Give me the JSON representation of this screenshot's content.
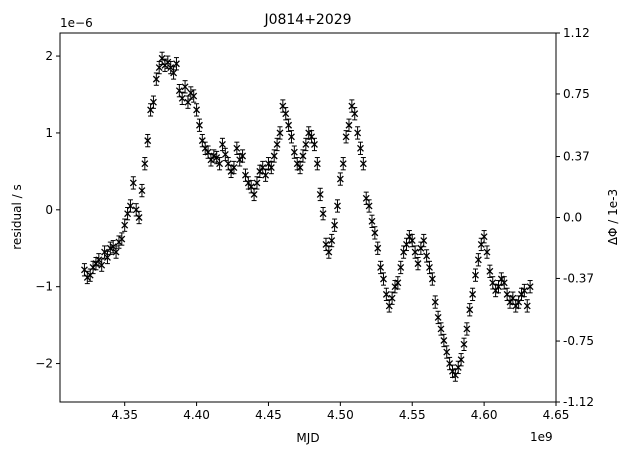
{
  "chart_data": {
    "type": "scatter",
    "title": "J0814+2029",
    "xlabel": "MJD",
    "ylabel": "residual / s",
    "y2label": "ΔΦ / 1e-3",
    "x_multiplier": "1e9",
    "y_multiplier": "1e−6",
    "xlim": [
      4.305,
      4.65
    ],
    "ylim": [
      -2.5,
      2.3
    ],
    "y2lim": [
      -1.12,
      1.12
    ],
    "x_ticks": [
      4.35,
      4.4,
      4.45,
      4.5,
      4.55,
      4.6,
      4.65
    ],
    "x_tick_labels": [
      "4.35",
      "4.40",
      "4.45",
      "4.50",
      "4.55",
      "4.60",
      "4.65"
    ],
    "y_ticks": [
      -2,
      -1,
      0,
      1,
      2
    ],
    "y_tick_labels": [
      "−2",
      "−1",
      "0",
      "1",
      "2"
    ],
    "y2_ticks": [
      -1.12,
      -0.75,
      -0.37,
      0.0,
      0.37,
      0.75,
      1.12
    ],
    "y2_tick_labels": [
      "-1.12",
      "-0.75",
      "-0.37",
      "0.0",
      "0.37",
      "0.75",
      "1.12"
    ],
    "grid": false,
    "marker": "x",
    "marker_color": "#000000",
    "error_bar": 0.08,
    "series": [
      {
        "points": [
          [
            4.322,
            -0.78
          ],
          [
            4.324,
            -0.88
          ],
          [
            4.326,
            -0.85
          ],
          [
            4.328,
            -0.75
          ],
          [
            4.33,
            -0.7
          ],
          [
            4.332,
            -0.65
          ],
          [
            4.334,
            -0.72
          ],
          [
            4.336,
            -0.55
          ],
          [
            4.338,
            -0.62
          ],
          [
            4.34,
            -0.5
          ],
          [
            4.342,
            -0.48
          ],
          [
            4.344,
            -0.55
          ],
          [
            4.346,
            -0.42
          ],
          [
            4.348,
            -0.38
          ],
          [
            4.35,
            -0.2
          ],
          [
            4.352,
            -0.05
          ],
          [
            4.354,
            0.05
          ],
          [
            4.356,
            0.35
          ],
          [
            4.358,
            0.0
          ],
          [
            4.36,
            -0.1
          ],
          [
            4.362,
            0.25
          ],
          [
            4.364,
            0.6
          ],
          [
            4.366,
            0.9
          ],
          [
            4.368,
            1.3
          ],
          [
            4.37,
            1.4
          ],
          [
            4.372,
            1.7
          ],
          [
            4.374,
            1.85
          ],
          [
            4.376,
            1.97
          ],
          [
            4.378,
            1.88
          ],
          [
            4.38,
            1.92
          ],
          [
            4.382,
            1.85
          ],
          [
            4.384,
            1.78
          ],
          [
            4.386,
            1.9
          ],
          [
            4.388,
            1.55
          ],
          [
            4.39,
            1.45
          ],
          [
            4.392,
            1.6
          ],
          [
            4.394,
            1.4
          ],
          [
            4.396,
            1.52
          ],
          [
            4.398,
            1.48
          ],
          [
            4.4,
            1.3
          ],
          [
            4.402,
            1.1
          ],
          [
            4.404,
            0.9
          ],
          [
            4.406,
            0.8
          ],
          [
            4.408,
            0.75
          ],
          [
            4.41,
            0.65
          ],
          [
            4.412,
            0.7
          ],
          [
            4.414,
            0.68
          ],
          [
            4.416,
            0.6
          ],
          [
            4.418,
            0.85
          ],
          [
            4.42,
            0.72
          ],
          [
            4.422,
            0.6
          ],
          [
            4.424,
            0.5
          ],
          [
            4.426,
            0.55
          ],
          [
            4.428,
            0.8
          ],
          [
            4.43,
            0.65
          ],
          [
            4.432,
            0.7
          ],
          [
            4.434,
            0.45
          ],
          [
            4.436,
            0.35
          ],
          [
            4.438,
            0.3
          ],
          [
            4.44,
            0.2
          ],
          [
            4.442,
            0.35
          ],
          [
            4.444,
            0.5
          ],
          [
            4.446,
            0.55
          ],
          [
            4.448,
            0.45
          ],
          [
            4.45,
            0.6
          ],
          [
            4.452,
            0.55
          ],
          [
            4.454,
            0.7
          ],
          [
            4.456,
            0.85
          ],
          [
            4.458,
            1.0
          ],
          [
            4.46,
            1.35
          ],
          [
            4.462,
            1.25
          ],
          [
            4.464,
            1.1
          ],
          [
            4.466,
            0.95
          ],
          [
            4.468,
            0.75
          ],
          [
            4.47,
            0.6
          ],
          [
            4.472,
            0.55
          ],
          [
            4.474,
            0.7
          ],
          [
            4.476,
            0.85
          ],
          [
            4.478,
            1.0
          ],
          [
            4.48,
            0.95
          ],
          [
            4.482,
            0.85
          ],
          [
            4.484,
            0.6
          ],
          [
            4.486,
            0.2
          ],
          [
            4.488,
            -0.05
          ],
          [
            4.49,
            -0.45
          ],
          [
            4.492,
            -0.55
          ],
          [
            4.494,
            -0.4
          ],
          [
            4.496,
            -0.2
          ],
          [
            4.498,
            0.05
          ],
          [
            4.5,
            0.4
          ],
          [
            4.502,
            0.6
          ],
          [
            4.504,
            0.95
          ],
          [
            4.506,
            1.1
          ],
          [
            4.508,
            1.35
          ],
          [
            4.51,
            1.25
          ],
          [
            4.512,
            1.0
          ],
          [
            4.514,
            0.8
          ],
          [
            4.516,
            0.6
          ],
          [
            4.518,
            0.15
          ],
          [
            4.52,
            0.05
          ],
          [
            4.522,
            -0.15
          ],
          [
            4.524,
            -0.3
          ],
          [
            4.526,
            -0.5
          ],
          [
            4.528,
            -0.75
          ],
          [
            4.53,
            -0.9
          ],
          [
            4.532,
            -1.1
          ],
          [
            4.534,
            -1.25
          ],
          [
            4.536,
            -1.15
          ],
          [
            4.538,
            -1.0
          ],
          [
            4.54,
            -0.95
          ],
          [
            4.542,
            -0.75
          ],
          [
            4.544,
            -0.55
          ],
          [
            4.546,
            -0.45
          ],
          [
            4.548,
            -0.35
          ],
          [
            4.55,
            -0.4
          ],
          [
            4.552,
            -0.55
          ],
          [
            4.554,
            -0.7
          ],
          [
            4.556,
            -0.5
          ],
          [
            4.558,
            -0.4
          ],
          [
            4.56,
            -0.6
          ],
          [
            4.562,
            -0.75
          ],
          [
            4.564,
            -0.9
          ],
          [
            4.566,
            -1.2
          ],
          [
            4.568,
            -1.4
          ],
          [
            4.57,
            -1.55
          ],
          [
            4.572,
            -1.7
          ],
          [
            4.574,
            -1.85
          ],
          [
            4.576,
            -2.0
          ],
          [
            4.578,
            -2.1
          ],
          [
            4.58,
            -2.15
          ],
          [
            4.582,
            -2.05
          ],
          [
            4.584,
            -1.95
          ],
          [
            4.586,
            -1.75
          ],
          [
            4.588,
            -1.55
          ],
          [
            4.59,
            -1.3
          ],
          [
            4.592,
            -1.1
          ],
          [
            4.594,
            -0.85
          ],
          [
            4.596,
            -0.65
          ],
          [
            4.598,
            -0.45
          ],
          [
            4.6,
            -0.35
          ],
          [
            4.602,
            -0.55
          ],
          [
            4.604,
            -0.8
          ],
          [
            4.606,
            -0.95
          ],
          [
            4.608,
            -1.05
          ],
          [
            4.61,
            -1.0
          ],
          [
            4.612,
            -0.9
          ],
          [
            4.614,
            -0.95
          ],
          [
            4.616,
            -1.1
          ],
          [
            4.618,
            -1.2
          ],
          [
            4.62,
            -1.15
          ],
          [
            4.622,
            -1.25
          ],
          [
            4.624,
            -1.2
          ],
          [
            4.626,
            -1.1
          ],
          [
            4.628,
            -1.05
          ],
          [
            4.63,
            -1.25
          ],
          [
            4.632,
            -1.0
          ]
        ]
      }
    ]
  }
}
